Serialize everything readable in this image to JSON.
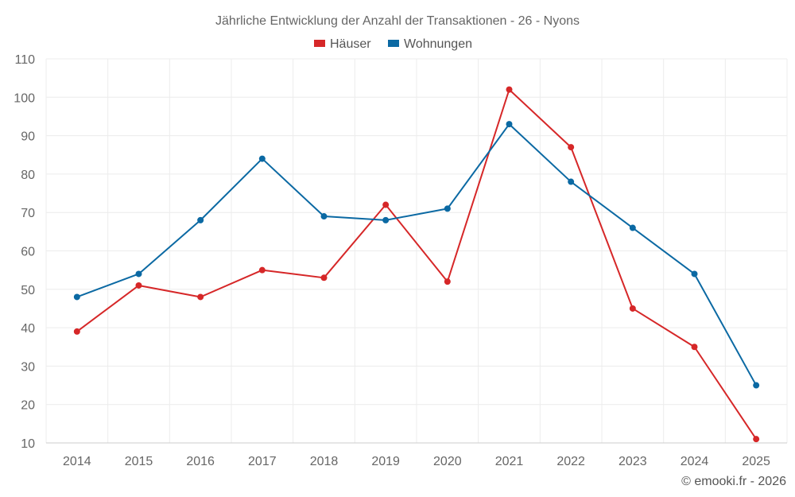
{
  "chart_data": {
    "type": "line",
    "title": "Jährliche Entwicklung der Anzahl der Transaktionen - 26 - Nyons",
    "categories": [
      "2014",
      "2015",
      "2016",
      "2017",
      "2018",
      "2019",
      "2020",
      "2021",
      "2022",
      "2023",
      "2024",
      "2025"
    ],
    "series": [
      {
        "name": "Häuser",
        "color": "#d62728",
        "values": [
          39,
          51,
          48,
          55,
          53,
          72,
          52,
          102,
          87,
          45,
          35,
          11
        ]
      },
      {
        "name": "Wohnungen",
        "color": "#0b69a3",
        "values": [
          48,
          54,
          68,
          84,
          69,
          68,
          71,
          93,
          78,
          66,
          54,
          25
        ]
      }
    ],
    "xlabel": "",
    "ylabel": "",
    "ylim": [
      10,
      110
    ],
    "yticks": [
      10,
      20,
      30,
      40,
      50,
      60,
      70,
      80,
      90,
      100,
      110
    ],
    "grid": true,
    "legend": "top-center"
  },
  "footer": "© emooki.fr - 2026"
}
